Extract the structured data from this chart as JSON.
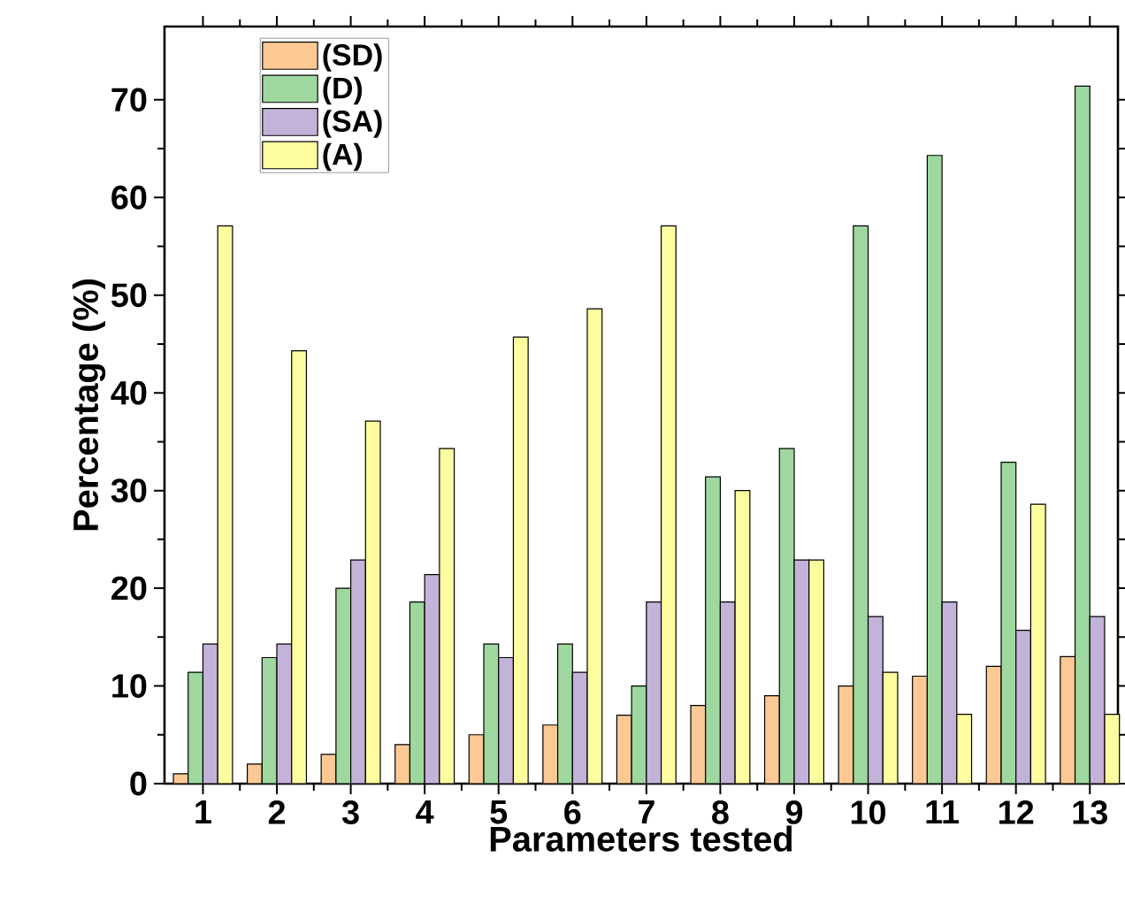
{
  "chart_data": {
    "type": "bar",
    "xlabel": "Parameters tested",
    "ylabel": "Percentage (%)",
    "categories": [
      "1",
      "2",
      "3",
      "4",
      "5",
      "6",
      "7",
      "8",
      "9",
      "10",
      "11",
      "12",
      "13"
    ],
    "series": [
      {
        "name": "(SD)",
        "color": "#fcc994",
        "values": [
          1,
          2,
          3,
          4,
          5,
          6,
          7,
          8,
          9,
          10,
          11,
          12,
          13
        ]
      },
      {
        "name": "(D)",
        "color": "#9fd89f",
        "values": [
          11.4,
          12.9,
          20,
          18.6,
          14.3,
          14.3,
          10,
          31.4,
          34.3,
          57.1,
          64.3,
          32.9,
          71.4
        ]
      },
      {
        "name": "(SA)",
        "color": "#c3b3d9",
        "values": [
          14.3,
          14.3,
          22.9,
          21.4,
          12.9,
          11.4,
          18.6,
          18.6,
          22.9,
          17.1,
          18.6,
          15.7,
          17.1
        ]
      },
      {
        "name": "(A)",
        "color": "#fdfd9f",
        "values": [
          57.1,
          44.3,
          37.1,
          34.3,
          45.7,
          48.6,
          57.1,
          30,
          22.9,
          11.4,
          7.1,
          28.6,
          7.1
        ]
      }
    ],
    "ylim": [
      0,
      77.5
    ],
    "yticks": [
      0,
      10,
      20,
      30,
      40,
      50,
      60,
      70
    ],
    "legend": "top left",
    "grid": false
  }
}
